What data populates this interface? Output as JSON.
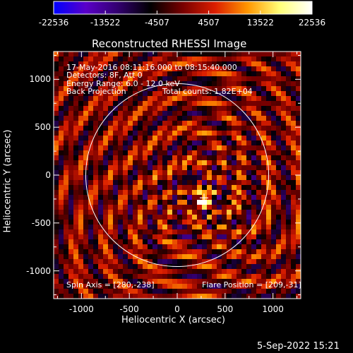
{
  "chart_data": {
    "type": "heatmap",
    "title": "Reconstructed RHESSI Image",
    "xlabel": "Heliocentric X (arcsec)",
    "ylabel": "Heliocentric Y (arcsec)",
    "xlim": [
      -1290,
      1290
    ],
    "ylim": [
      -1290,
      1290
    ],
    "x_ticks": [
      -1000,
      -500,
      0,
      500,
      1000
    ],
    "y_ticks": [
      -1000,
      -500,
      0,
      500,
      1000
    ],
    "colorbar": {
      "min": -22536,
      "max": 22536,
      "ticks": [
        -22536,
        -13522,
        -4507,
        4507,
        13522,
        22536
      ],
      "colormap": [
        "#0000ff",
        "#5a00c8",
        "#32006e",
        "#000000",
        "#780000",
        "#dc1e00",
        "#ff9600",
        "#ffff78",
        "#ffffff"
      ]
    },
    "annotations": {
      "time_range": "17-May-2016 08:11:16.000 to 08:15:40.000",
      "detectors": "Detectors: 8F, Att 0",
      "energy": "Energy Range: 6.0 - 12.0 keV",
      "method": "Back Projection",
      "counts": "Total counts: 1.82E+04",
      "spin_axis": "Spin Axis = [280,-238]",
      "flare_position": "Flare Position = [209,-31]"
    },
    "solar_disk": {
      "center": [
        0,
        0
      ],
      "radius_arcsec": 955,
      "color": "#ffffff"
    },
    "flare_marker": {
      "x": 280,
      "y": -238
    },
    "peak_source": {
      "x": 280,
      "y": -270
    }
  },
  "footer": {
    "date": "5-Sep-2022 15:21"
  }
}
